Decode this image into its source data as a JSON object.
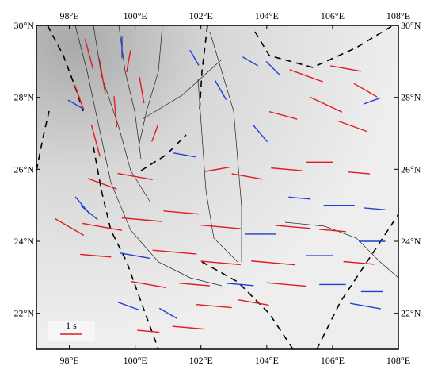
{
  "map": {
    "xlim": [
      97,
      108
    ],
    "ylim": [
      21,
      30
    ],
    "xticks": [
      {
        "value": 98,
        "label": "98°E"
      },
      {
        "value": 100,
        "label": "100°E"
      },
      {
        "value": 102,
        "label": "102°E"
      },
      {
        "value": 104,
        "label": "104°E"
      },
      {
        "value": 106,
        "label": "106°E"
      },
      {
        "value": 108,
        "label": "108°E"
      }
    ],
    "yticks": [
      {
        "value": 22,
        "label": "22°N"
      },
      {
        "value": 24,
        "label": "24°N"
      },
      {
        "value": 26,
        "label": "26°N"
      },
      {
        "value": 28,
        "label": "28°N"
      },
      {
        "value": 30,
        "label": "30°N"
      }
    ],
    "scale_label": "1 s",
    "scale_value": 1,
    "scale_color": "#e41a1c",
    "stations": [
      {
        "lon": 98.6,
        "lat": 29.2,
        "phi": 165,
        "dt": 1.4,
        "color": "#e41a1c"
      },
      {
        "lon": 99.0,
        "lat": 28.6,
        "phi": 170,
        "dt": 1.6,
        "color": "#e41a1c"
      },
      {
        "lon": 98.3,
        "lat": 28.0,
        "phi": 160,
        "dt": 1.2,
        "color": "#e41a1c"
      },
      {
        "lon": 99.4,
        "lat": 27.6,
        "phi": 175,
        "dt": 1.4,
        "color": "#e41a1c"
      },
      {
        "lon": 98.8,
        "lat": 26.8,
        "phi": 165,
        "dt": 1.5,
        "color": "#e41a1c"
      },
      {
        "lon": 99.8,
        "lat": 29.0,
        "phi": 10,
        "dt": 1.0,
        "color": "#e41a1c"
      },
      {
        "lon": 100.2,
        "lat": 28.2,
        "phi": 170,
        "dt": 1.2,
        "color": "#e41a1c"
      },
      {
        "lon": 99.6,
        "lat": 29.4,
        "phi": 0,
        "dt": 1.0,
        "color": "#1f3fd6"
      },
      {
        "lon": 98.2,
        "lat": 27.8,
        "phi": 120,
        "dt": 0.8,
        "color": "#1f3fd6"
      },
      {
        "lon": 100.6,
        "lat": 27.0,
        "phi": 20,
        "dt": 0.8,
        "color": "#e41a1c"
      },
      {
        "lon": 103.5,
        "lat": 29.0,
        "phi": 120,
        "dt": 0.8,
        "color": "#1f3fd6"
      },
      {
        "lon": 104.2,
        "lat": 28.8,
        "phi": 135,
        "dt": 0.9,
        "color": "#1f3fd6"
      },
      {
        "lon": 105.2,
        "lat": 28.6,
        "phi": 110,
        "dt": 1.6,
        "color": "#e41a1c"
      },
      {
        "lon": 106.4,
        "lat": 28.8,
        "phi": 100,
        "dt": 1.4,
        "color": "#e41a1c"
      },
      {
        "lon": 107.0,
        "lat": 28.2,
        "phi": 120,
        "dt": 1.2,
        "color": "#e41a1c"
      },
      {
        "lon": 105.8,
        "lat": 27.8,
        "phi": 115,
        "dt": 1.6,
        "color": "#e41a1c"
      },
      {
        "lon": 104.5,
        "lat": 27.5,
        "phi": 105,
        "dt": 1.3,
        "color": "#e41a1c"
      },
      {
        "lon": 103.8,
        "lat": 27.0,
        "phi": 140,
        "dt": 1.0,
        "color": "#1f3fd6"
      },
      {
        "lon": 106.6,
        "lat": 27.2,
        "phi": 110,
        "dt": 1.4,
        "color": "#e41a1c"
      },
      {
        "lon": 107.2,
        "lat": 27.9,
        "phi": 70,
        "dt": 0.8,
        "color": "#1f3fd6"
      },
      {
        "lon": 102.6,
        "lat": 28.2,
        "phi": 150,
        "dt": 1.0,
        "color": "#1f3fd6"
      },
      {
        "lon": 101.8,
        "lat": 29.1,
        "phi": 150,
        "dt": 0.8,
        "color": "#1f3fd6"
      },
      {
        "lon": 101.5,
        "lat": 26.4,
        "phi": 100,
        "dt": 1.0,
        "color": "#1f3fd6"
      },
      {
        "lon": 102.5,
        "lat": 26.0,
        "phi": 80,
        "dt": 1.2,
        "color": "#e41a1c"
      },
      {
        "lon": 103.4,
        "lat": 25.8,
        "phi": 100,
        "dt": 1.4,
        "color": "#e41a1c"
      },
      {
        "lon": 104.6,
        "lat": 26.0,
        "phi": 95,
        "dt": 1.4,
        "color": "#e41a1c"
      },
      {
        "lon": 105.6,
        "lat": 26.2,
        "phi": 90,
        "dt": 1.2,
        "color": "#e41a1c"
      },
      {
        "lon": 106.8,
        "lat": 25.9,
        "phi": 95,
        "dt": 1.0,
        "color": "#e41a1c"
      },
      {
        "lon": 105.0,
        "lat": 25.2,
        "phi": 95,
        "dt": 1.0,
        "color": "#1f3fd6"
      },
      {
        "lon": 106.2,
        "lat": 25.0,
        "phi": 90,
        "dt": 1.4,
        "color": "#1f3fd6"
      },
      {
        "lon": 107.3,
        "lat": 24.9,
        "phi": 95,
        "dt": 1.0,
        "color": "#1f3fd6"
      },
      {
        "lon": 100.0,
        "lat": 25.8,
        "phi": 100,
        "dt": 1.6,
        "color": "#e41a1c"
      },
      {
        "lon": 99.0,
        "lat": 25.6,
        "phi": 110,
        "dt": 1.4,
        "color": "#e41a1c"
      },
      {
        "lon": 98.4,
        "lat": 25.0,
        "phi": 140,
        "dt": 1.0,
        "color": "#1f3fd6"
      },
      {
        "lon": 98.6,
        "lat": 24.8,
        "phi": 130,
        "dt": 1.0,
        "color": "#1f3fd6"
      },
      {
        "lon": 98.0,
        "lat": 24.4,
        "phi": 120,
        "dt": 1.5,
        "color": "#e41a1c"
      },
      {
        "lon": 99.0,
        "lat": 24.4,
        "phi": 100,
        "dt": 1.8,
        "color": "#e41a1c"
      },
      {
        "lon": 100.2,
        "lat": 24.6,
        "phi": 95,
        "dt": 1.8,
        "color": "#e41a1c"
      },
      {
        "lon": 101.4,
        "lat": 24.8,
        "phi": 95,
        "dt": 1.6,
        "color": "#e41a1c"
      },
      {
        "lon": 102.6,
        "lat": 24.4,
        "phi": 95,
        "dt": 1.8,
        "color": "#e41a1c"
      },
      {
        "lon": 103.8,
        "lat": 24.2,
        "phi": 90,
        "dt": 1.4,
        "color": "#1f3fd6"
      },
      {
        "lon": 104.8,
        "lat": 24.4,
        "phi": 95,
        "dt": 1.6,
        "color": "#e41a1c"
      },
      {
        "lon": 106.0,
        "lat": 24.3,
        "phi": 95,
        "dt": 1.2,
        "color": "#e41a1c"
      },
      {
        "lon": 107.2,
        "lat": 24.0,
        "phi": 90,
        "dt": 1.2,
        "color": "#1f3fd6"
      },
      {
        "lon": 98.8,
        "lat": 23.6,
        "phi": 95,
        "dt": 1.4,
        "color": "#e41a1c"
      },
      {
        "lon": 100.0,
        "lat": 23.6,
        "phi": 100,
        "dt": 1.4,
        "color": "#1f3fd6"
      },
      {
        "lon": 101.2,
        "lat": 23.7,
        "phi": 95,
        "dt": 2.0,
        "color": "#e41a1c"
      },
      {
        "lon": 102.6,
        "lat": 23.4,
        "phi": 95,
        "dt": 1.8,
        "color": "#e41a1c"
      },
      {
        "lon": 104.2,
        "lat": 23.4,
        "phi": 95,
        "dt": 2.0,
        "color": "#e41a1c"
      },
      {
        "lon": 105.6,
        "lat": 23.6,
        "phi": 90,
        "dt": 1.2,
        "color": "#1f3fd6"
      },
      {
        "lon": 106.8,
        "lat": 23.4,
        "phi": 95,
        "dt": 1.4,
        "color": "#e41a1c"
      },
      {
        "lon": 100.4,
        "lat": 22.8,
        "phi": 100,
        "dt": 1.6,
        "color": "#e41a1c"
      },
      {
        "lon": 101.8,
        "lat": 22.8,
        "phi": 95,
        "dt": 1.4,
        "color": "#e41a1c"
      },
      {
        "lon": 103.2,
        "lat": 22.8,
        "phi": 95,
        "dt": 1.2,
        "color": "#1f3fd6"
      },
      {
        "lon": 104.6,
        "lat": 22.8,
        "phi": 95,
        "dt": 1.8,
        "color": "#e41a1c"
      },
      {
        "lon": 106.0,
        "lat": 22.8,
        "phi": 90,
        "dt": 1.2,
        "color": "#1f3fd6"
      },
      {
        "lon": 107.2,
        "lat": 22.6,
        "phi": 90,
        "dt": 1.0,
        "color": "#1f3fd6"
      },
      {
        "lon": 99.8,
        "lat": 22.2,
        "phi": 110,
        "dt": 1.0,
        "color": "#1f3fd6"
      },
      {
        "lon": 101.0,
        "lat": 22.0,
        "phi": 120,
        "dt": 0.9,
        "color": "#1f3fd6"
      },
      {
        "lon": 102.4,
        "lat": 22.2,
        "phi": 95,
        "dt": 1.6,
        "color": "#e41a1c"
      },
      {
        "lon": 107.0,
        "lat": 22.2,
        "phi": 100,
        "dt": 1.4,
        "color": "#1f3fd6"
      },
      {
        "lon": 100.4,
        "lat": 21.5,
        "phi": 95,
        "dt": 1.0,
        "color": "#e41a1c"
      },
      {
        "lon": 101.6,
        "lat": 21.6,
        "phi": 95,
        "dt": 1.4,
        "color": "#e41a1c"
      },
      {
        "lon": 103.6,
        "lat": 22.3,
        "phi": 100,
        "dt": 1.4,
        "color": "#e41a1c"
      }
    ]
  }
}
